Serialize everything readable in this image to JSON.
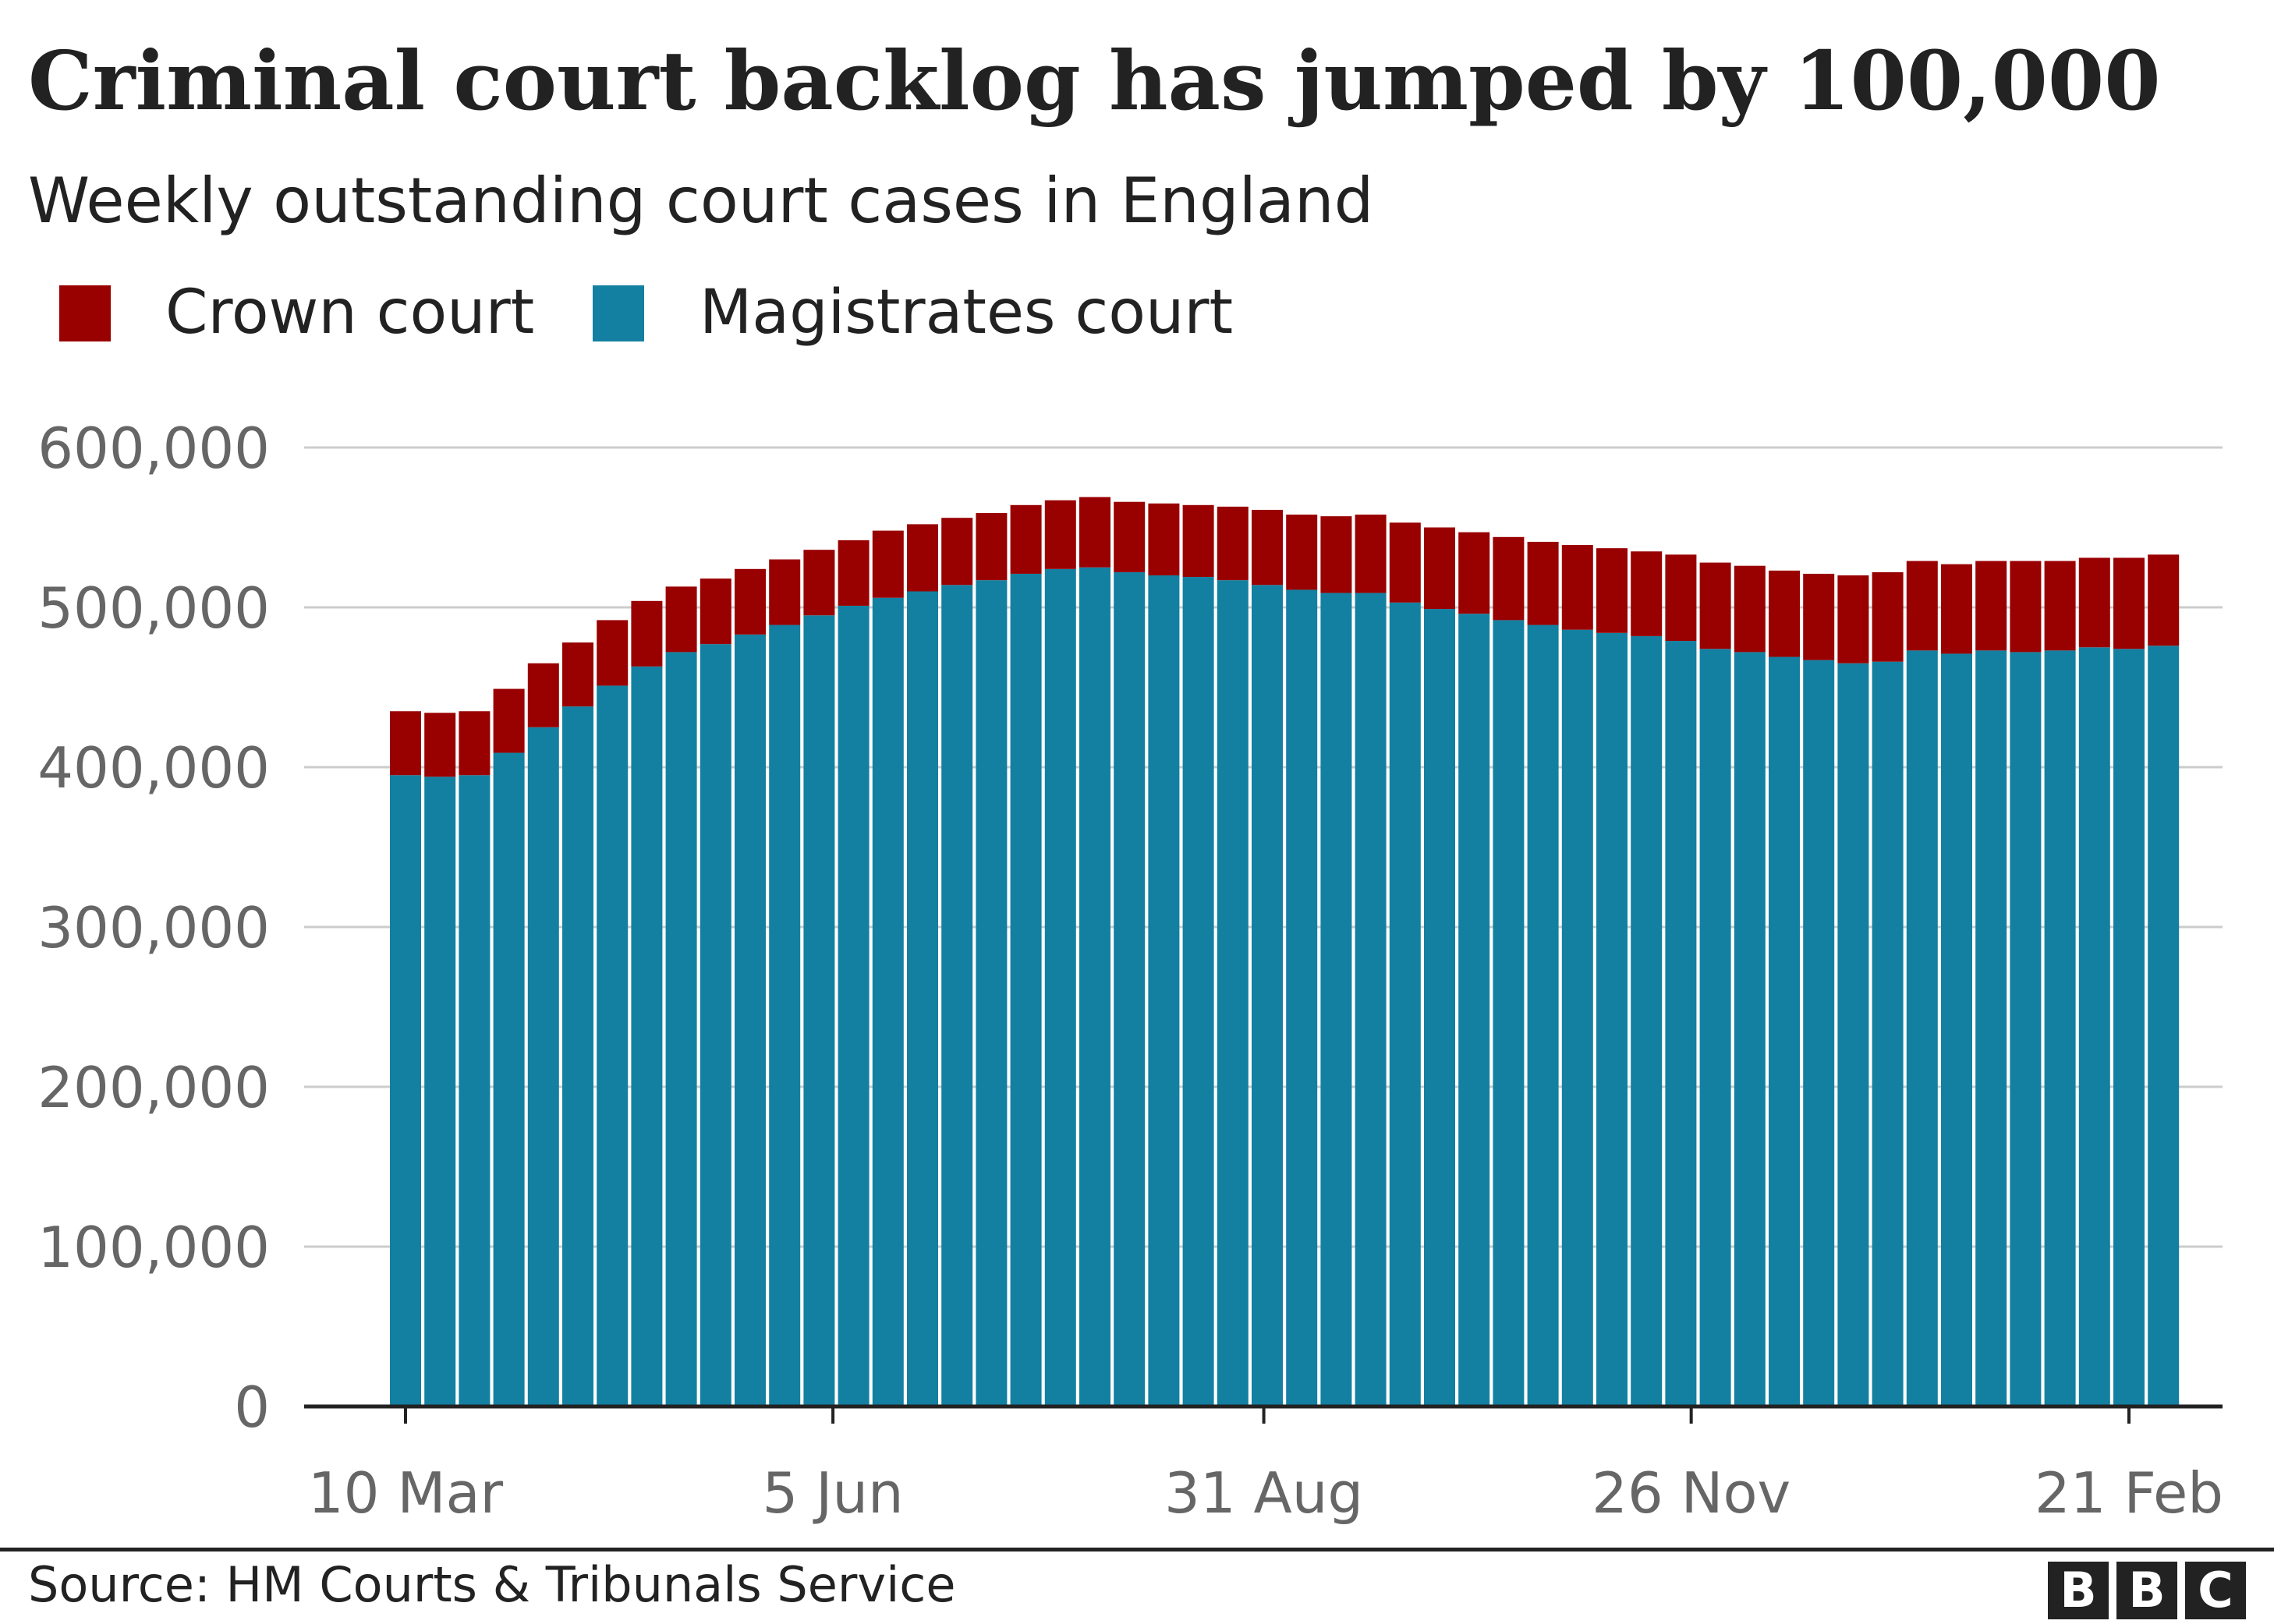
{
  "title": "Criminal court backlog has jumped by 100,000",
  "subtitle": "Weekly outstanding court cases in England",
  "colors": {
    "crown": "#990000",
    "magistrates": "#1380A1",
    "grid": "#cccccc",
    "axis": "#222222",
    "tick_text": "#666666"
  },
  "legend": [
    {
      "label": "Crown court",
      "color": "#990000"
    },
    {
      "label": "Magistrates court",
      "color": "#1380A1"
    }
  ],
  "source": "Source: HM Courts & Tribunals Service",
  "logo": [
    "B",
    "B",
    "C"
  ],
  "chart_data": {
    "type": "bar",
    "stacked": true,
    "title": "Criminal court backlog has jumped by 100,000",
    "subtitle": "Weekly outstanding court cases in England",
    "ylim": [
      0,
      600000
    ],
    "yticks": [
      0,
      100000,
      200000,
      300000,
      400000,
      500000,
      600000
    ],
    "ytick_labels": [
      "0",
      "100,000",
      "200,000",
      "300,000",
      "400,000",
      "500,000",
      "600,000"
    ],
    "xtick_labels": [
      {
        "label": "10 Mar",
        "index": 0
      },
      {
        "label": "5 Jun",
        "index": 12.4
      },
      {
        "label": "31 Aug",
        "index": 24.9
      },
      {
        "label": "26 Nov",
        "index": 37.3
      },
      {
        "label": "21 Feb",
        "index": 50
      }
    ],
    "grid": true,
    "legend_position": "top-left",
    "series": [
      {
        "name": "Magistrates court",
        "values": [
          395000,
          394000,
          395000,
          409000,
          425000,
          438000,
          451000,
          463000,
          472000,
          477000,
          483000,
          489000,
          495000,
          501000,
          506000,
          510000,
          514000,
          517000,
          521000,
          524000,
          525000,
          522000,
          520000,
          519000,
          517000,
          514000,
          511000,
          509000,
          509000,
          503000,
          499000,
          496000,
          492000,
          489000,
          486000,
          484000,
          482000,
          479000,
          474000,
          472000,
          469000,
          467000,
          465000,
          466000,
          473000,
          471000,
          473000,
          472000,
          473000,
          475000,
          474000,
          476000
        ]
      },
      {
        "name": "Crown court",
        "values": [
          40000,
          40000,
          40000,
          40000,
          40000,
          40000,
          41000,
          41000,
          41000,
          41000,
          41000,
          41000,
          41000,
          41000,
          42000,
          42000,
          42000,
          42000,
          43000,
          43000,
          44000,
          44000,
          45000,
          45000,
          46000,
          47000,
          47000,
          48000,
          49000,
          50000,
          51000,
          51000,
          52000,
          52000,
          53000,
          53000,
          53000,
          54000,
          54000,
          54000,
          54000,
          54000,
          55000,
          56000,
          56000,
          56000,
          56000,
          57000,
          56000,
          56000,
          57000,
          57000
        ]
      }
    ]
  }
}
